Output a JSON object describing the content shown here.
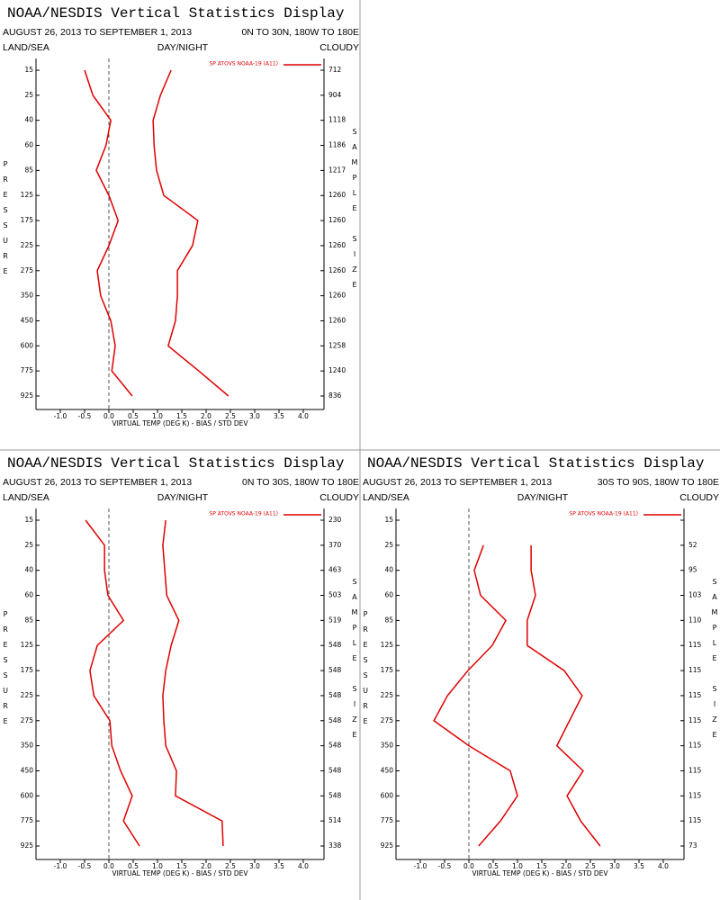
{
  "chart_data": [
    {
      "type": "line",
      "title": "NOAA/NESDIS Vertical Statistics Display",
      "subtitle": "AUGUST 26, 2013 TO SEPTEMBER 1, 2013",
      "region": "0N TO 30N, 180W TO 180E",
      "headers": [
        "LAND/SEA",
        "DAY/NIGHT",
        "CLOUDY"
      ],
      "y_label": "PRESSURE",
      "y2_label": "SAMPLE SIZE",
      "x_label": "VIRTUAL TEMP (DEG K) - BIAS / STD DEV",
      "legend": "SP ATOVS NOAA-19 (A11)",
      "categories": [
        "15",
        "25",
        "40",
        "60",
        "85",
        "125",
        "175",
        "225",
        "275",
        "350",
        "450",
        "600",
        "775",
        "925"
      ],
      "sample_size": [
        "712",
        "904",
        "1118",
        "1186",
        "1217",
        "1260",
        "1260",
        "1260",
        "1260",
        "1260",
        "1260",
        "1258",
        "1240",
        "836"
      ],
      "series": [
        {
          "color": "#e00000",
          "values": [
            -0.5,
            -0.33,
            0.04,
            -0.06,
            -0.26,
            0.0,
            0.19,
            0.0,
            -0.24,
            -0.17,
            0.04,
            0.13,
            0.06,
            0.48
          ]
        },
        {
          "color": "#e00000",
          "values": [
            1.28,
            1.06,
            0.91,
            0.93,
            0.98,
            1.13,
            1.83,
            1.72,
            1.41,
            1.41,
            1.37,
            1.22,
            1.85,
            2.46
          ]
        }
      ],
      "xlim": [
        -1.5,
        4.5
      ],
      "xticks": [
        {
          "value": -1,
          "label": "-1.0"
        },
        -0.5,
        {
          "value": 0,
          "label": "0.0"
        },
        0.5,
        {
          "value": 1,
          "label": "1.0"
        },
        1.5,
        {
          "value": 2,
          "label": "2.0"
        },
        2.5,
        {
          "value": 3,
          "label": "3.0"
        },
        3.5,
        {
          "value": 4,
          "label": "4.0"
        }
      ]
    },
    {
      "type": "line",
      "title": "NOAA/NESDIS Vertical Statistics Display",
      "subtitle": "AUGUST 26, 2013 TO SEPTEMBER 1, 2013",
      "region": "0N TO 30S, 180W TO 180E",
      "headers": [
        "LAND/SEA",
        "DAY/NIGHT",
        "CLOUDY"
      ],
      "y_label": "PRESSURE",
      "y2_label": "SAMPLE SIZE",
      "x_label": "VIRTUAL TEMP (DEG K) - BIAS / STD DEV",
      "legend": "SP ATOVS NOAA-19 (A11)",
      "categories": [
        "15",
        "25",
        "40",
        "60",
        "85",
        "125",
        "175",
        "225",
        "275",
        "350",
        "450",
        "600",
        "775",
        "925"
      ],
      "sample_size": [
        "230",
        "370",
        "463",
        "503",
        "519",
        "548",
        "548",
        "548",
        "548",
        "548",
        "548",
        "548",
        "514",
        "338"
      ],
      "series": [
        {
          "color": "#e00000",
          "values": [
            -0.48,
            -0.09,
            -0.09,
            -0.02,
            0.3,
            -0.24,
            -0.39,
            -0.31,
            0.02,
            0.06,
            0.24,
            0.48,
            0.3,
            0.63
          ]
        },
        {
          "color": "#e00000",
          "values": [
            1.17,
            1.11,
            1.15,
            1.19,
            1.44,
            1.28,
            1.17,
            1.11,
            1.13,
            1.17,
            1.39,
            1.37,
            2.33,
            2.35
          ]
        }
      ],
      "xlim": [
        -1.5,
        4.5
      ],
      "xticks": [
        {
          "value": -1,
          "label": "-1.0"
        },
        -0.5,
        {
          "value": 0,
          "label": "0.0"
        },
        0.5,
        {
          "value": 1,
          "label": "1.0"
        },
        1.5,
        {
          "value": 2,
          "label": "2.0"
        },
        2.5,
        {
          "value": 3,
          "label": "3.0"
        },
        3.5,
        {
          "value": 4,
          "label": "4.0"
        }
      ]
    },
    {
      "type": "line",
      "title": "NOAA/NESDIS Vertical Statistics Display",
      "subtitle": "AUGUST 26, 2013 TO SEPTEMBER 1, 2013",
      "region": "30S TO 90S, 180W TO 180E",
      "headers": [
        "LAND/SEA",
        "DAY/NIGHT",
        "CLOUDY"
      ],
      "y_label": "PRESSURE",
      "y2_label": "SAMPLE SIZE",
      "x_label": "VIRTUAL TEMP (DEG K) - BIAS / STD DEV",
      "legend": "SP ATOVS NOAA-19 (A11)",
      "categories": [
        "15",
        "25",
        "40",
        "60",
        "85",
        "125",
        "175",
        "225",
        "275",
        "350",
        "450",
        "600",
        "775",
        "925"
      ],
      "sample_size": [
        null,
        "52",
        "95",
        "103",
        "110",
        "115",
        "115",
        "115",
        "115",
        "115",
        "115",
        "115",
        "115",
        "73"
      ],
      "series": [
        {
          "color": "#e00000",
          "values": [
            null,
            0.3,
            0.11,
            0.24,
            0.76,
            0.48,
            -0.02,
            -0.44,
            -0.72,
            0.0,
            0.85,
            1.0,
            0.65,
            0.2
          ]
        },
        {
          "color": "#e00000",
          "values": [
            null,
            1.28,
            1.28,
            1.37,
            1.2,
            1.2,
            1.96,
            2.33,
            2.07,
            1.81,
            2.35,
            2.02,
            2.3,
            2.7
          ]
        }
      ],
      "xlim": [
        -1.5,
        4.5
      ],
      "xticks": [
        {
          "value": -1,
          "label": "-1.0"
        },
        -0.5,
        {
          "value": 0,
          "label": "0.0"
        },
        0.5,
        {
          "value": 1,
          "label": "1.0"
        },
        1.5,
        {
          "value": 2,
          "label": "2.0"
        },
        2.5,
        {
          "value": 3,
          "label": "3.0"
        },
        3.5,
        {
          "value": 4,
          "label": "4.0"
        }
      ]
    }
  ]
}
